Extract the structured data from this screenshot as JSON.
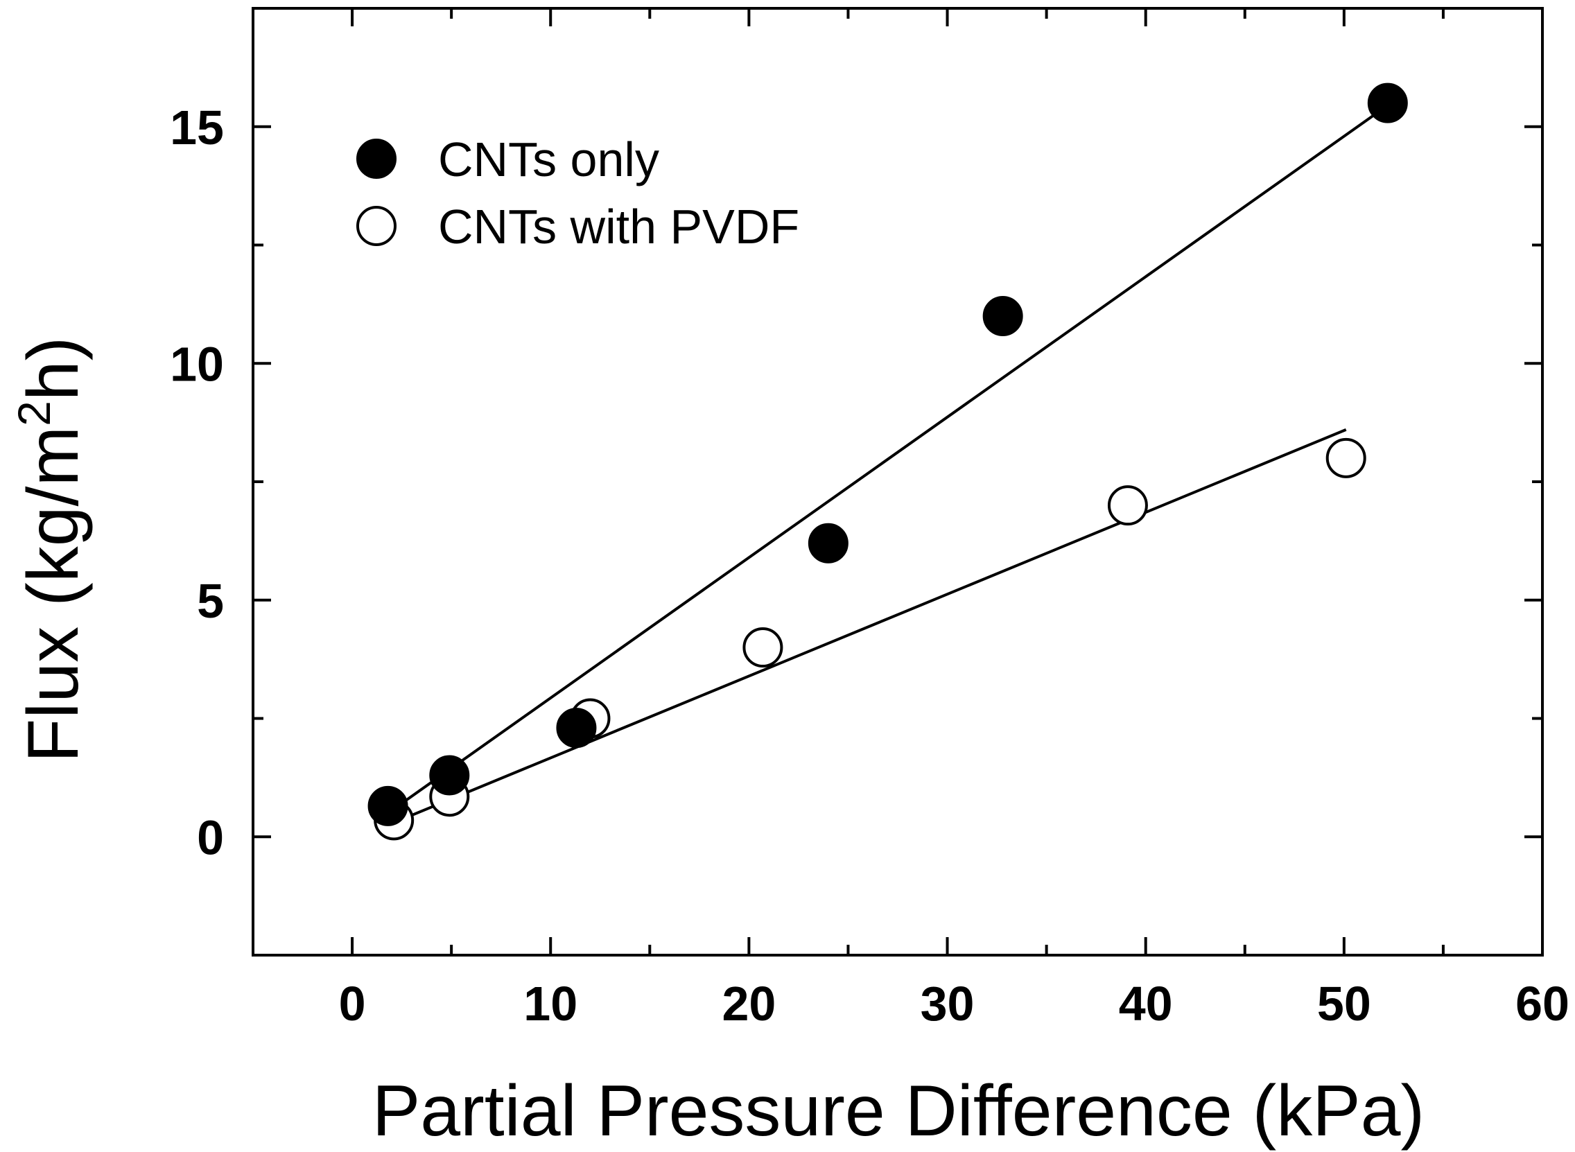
{
  "chart_data": {
    "type": "scatter",
    "title": "",
    "xlabel": "Partial Pressure Difference (kPa)",
    "ylabel": {
      "prefix": "Flux (kg/m",
      "superscript": "2",
      "suffix": "h)"
    },
    "xlim": [
      -5,
      60
    ],
    "ylim": [
      -2.5,
      17.5
    ],
    "x_ticks": [
      0,
      10,
      20,
      30,
      40,
      50,
      60
    ],
    "x_tick_labels": [
      "0",
      "10",
      "20",
      "30",
      "40",
      "50",
      "60"
    ],
    "x_minor_ticks": [
      -5,
      5,
      15,
      25,
      35,
      45,
      55
    ],
    "y_ticks": [
      0,
      5,
      10,
      15
    ],
    "y_tick_labels": [
      "0",
      "5",
      "10",
      "15"
    ],
    "y_minor_ticks": [
      -2.5,
      2.5,
      7.5,
      12.5
    ],
    "grid": false,
    "legend_position": "top-left",
    "series": [
      {
        "name": "CNTs only",
        "marker": "filled-circle",
        "color": "#000000",
        "x": [
          1.8,
          4.9,
          11.3,
          24.0,
          32.8,
          52.2
        ],
        "y": [
          0.65,
          1.3,
          2.3,
          6.2,
          11.0,
          15.5
        ],
        "fit_line": {
          "x": [
            1.8,
            52.2
          ],
          "y": [
            0.5,
            15.45
          ]
        }
      },
      {
        "name": "CNTs with PVDF",
        "marker": "open-circle",
        "color": "#000000",
        "x": [
          2.1,
          4.9,
          12.0,
          20.7,
          39.1,
          50.1
        ],
        "y": [
          0.35,
          0.85,
          2.5,
          4.0,
          7.0,
          8.0
        ],
        "fit_line": {
          "x": [
            2.1,
            50.1
          ],
          "y": [
            0.3,
            8.6
          ]
        }
      }
    ]
  }
}
